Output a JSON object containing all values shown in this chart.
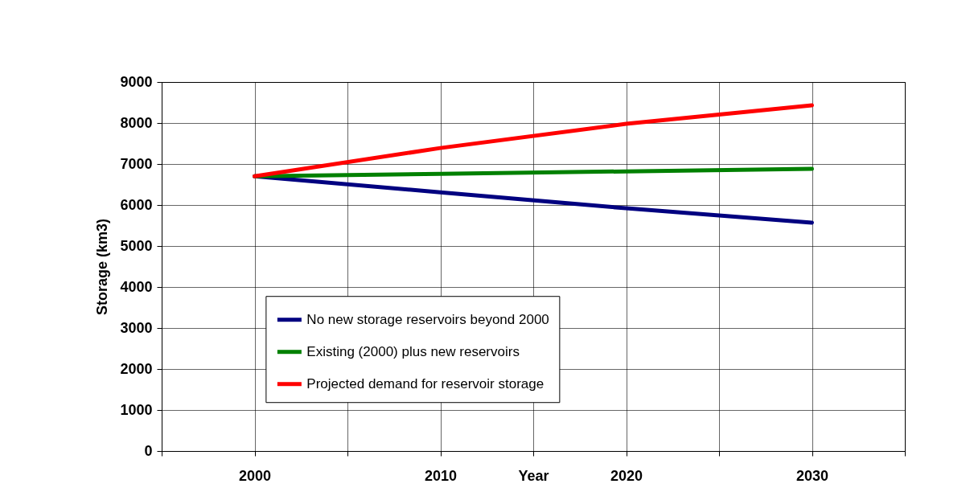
{
  "chart_data": {
    "type": "line",
    "xlabel": "Year",
    "ylabel": "Storage (km3)",
    "x": [
      2000,
      2010,
      2020,
      2030
    ],
    "series": [
      {
        "name": "No new storage reservoirs beyond 2000",
        "color": "#000080",
        "values": [
          6700,
          6310,
          5920,
          5570
        ]
      },
      {
        "name": "Existing (2000) plus new reservoirs",
        "color": "#008000",
        "values": [
          6700,
          6760,
          6820,
          6880
        ]
      },
      {
        "name": "Projected demand for reservoir storage",
        "color": "#ff0000",
        "values": [
          6700,
          7390,
          7980,
          8430
        ]
      }
    ],
    "xlim": [
      1995,
      2035
    ],
    "xticks": [
      {
        "value": 1995,
        "label": null
      },
      2000,
      {
        "value": 2005,
        "label": null
      },
      2010,
      {
        "value": 2015,
        "label": null
      },
      2020,
      {
        "value": 2025,
        "label": null
      },
      2030,
      {
        "value": 2035,
        "label": null
      }
    ],
    "ylim": [
      0,
      9000
    ],
    "yticks": [
      0,
      1000,
      2000,
      3000,
      4000,
      5000,
      6000,
      7000,
      8000,
      9000
    ],
    "grid": true,
    "legend": "bottom",
    "marker": "none",
    "line_style": "solid"
  }
}
